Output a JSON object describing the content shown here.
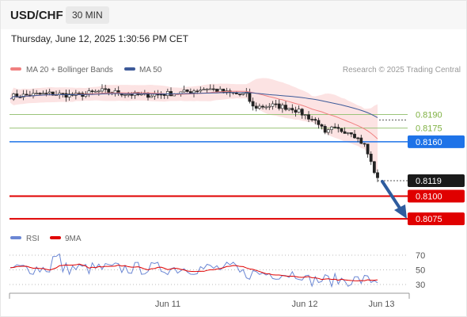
{
  "header": {
    "symbol": "USD/CHF",
    "timeframe": "30 MIN",
    "date": "Thursday, June 12, 2025 1:30:56 PM CET"
  },
  "legend": {
    "ma20": "MA 20 + Bollinger Bands",
    "ma50": "MA 50",
    "credit": "Research © 2025 Trading Central",
    "ma20_color": "#f08080",
    "ma50_color": "#3d5a99"
  },
  "chart_data": {
    "type": "candlestick",
    "price_range": [
      0.8069,
      0.8228
    ],
    "last_price": 0.8119,
    "levels": [
      {
        "value": 0.819,
        "label": "0.8190",
        "style": "resistance",
        "color": "#9bc47a"
      },
      {
        "value": 0.8175,
        "label": "0.8175",
        "style": "resistance",
        "color": "#9bc47a"
      },
      {
        "value": 0.816,
        "label": "0.8160",
        "style": "pivot",
        "color": "#1e73e8"
      },
      {
        "value": 0.81,
        "label": "0.8100",
        "style": "support",
        "color": "#e00000"
      },
      {
        "value": 0.8075,
        "label": "0.8075",
        "style": "support",
        "color": "#e00000"
      }
    ],
    "last_price_label": "0.8119",
    "arrow": {
      "direction": "down",
      "from": 0.8116,
      "to": 0.8082,
      "color": "#2e5c9e"
    },
    "x_labels": [
      "Jun 11",
      "Jun 12",
      "Jun 13"
    ],
    "rsi": {
      "legend": [
        "RSI",
        "9MA"
      ],
      "rsi_color": "#6b87d4",
      "ma_color": "#e00000",
      "levels": [
        70,
        50,
        30
      ],
      "level_labels": [
        "70",
        "50",
        "30"
      ]
    }
  }
}
